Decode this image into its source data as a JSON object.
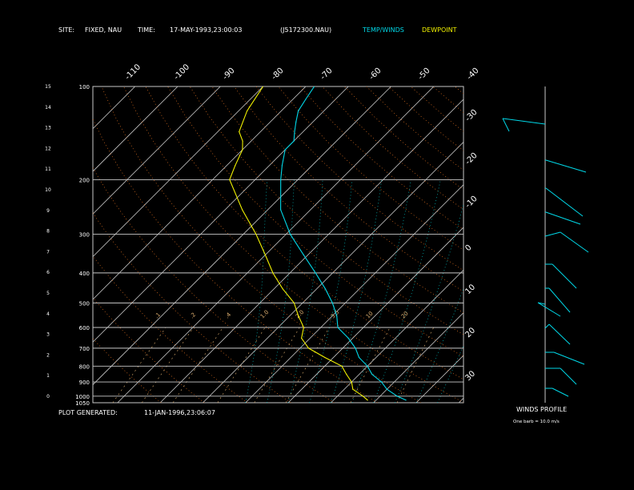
{
  "header": {
    "site_label": "SITE:",
    "site_value": "FIXED, NAU",
    "time_label": "TIME:",
    "time_value": "17-MAY-1993,23:00:03",
    "station_id": "(J5172300.NAU)",
    "temp_legend": "TEMP/WINDS",
    "dew_legend": "DEWPOINT"
  },
  "footer": {
    "generated_label": "PLOT GENERATED:",
    "generated_value": "11-JAN-1996,23:06:07",
    "winds_title": "WINDS PROFILE",
    "barb_note": "One barb = 10.0 m/s"
  },
  "colors": {
    "temp": "#00d8e8",
    "dewpoint": "#f0f000",
    "isobar": "#c8c8c8",
    "isotherm": "#c8c8c8",
    "dry_adiabat": "#e07020",
    "moist_adiabat": "#00c0c0",
    "mixing_ratio": "#e0b070"
  },
  "chart_data": {
    "type": "line",
    "pressure_labels": [
      "100",
      "200",
      "300",
      "400",
      "500",
      "600",
      "700",
      "800",
      "900",
      "1000",
      "1050"
    ],
    "height_labels": [
      "0",
      "1",
      "2",
      "3",
      "4",
      "5",
      "6",
      "7",
      "8",
      "9",
      "10",
      "11",
      "12",
      "13",
      "14",
      "15"
    ],
    "top_temperature_labels": [
      "-110",
      "-100",
      "-90",
      "-80",
      "-70",
      "-60",
      "-50",
      "-40"
    ],
    "right_temperature_labels": [
      "-30",
      "-20",
      "-10",
      "0",
      "10",
      "20",
      "30"
    ],
    "mixing_ratio_labels": [
      ".1",
      ".2",
      ".4",
      "1.0",
      "2.0",
      "3.5",
      "10",
      "20"
    ],
    "series": [
      {
        "name": "TEMP/WINDS",
        "points": [
          {
            "p": 1030,
            "t": 27
          },
          {
            "p": 1000,
            "t": 24
          },
          {
            "p": 950,
            "t": 20
          },
          {
            "p": 900,
            "t": 17
          },
          {
            "p": 850,
            "t": 13
          },
          {
            "p": 800,
            "t": 10
          },
          {
            "p": 750,
            "t": 6
          },
          {
            "p": 700,
            "t": 3
          },
          {
            "p": 650,
            "t": -1
          },
          {
            "p": 600,
            "t": -6
          },
          {
            "p": 550,
            "t": -9
          },
          {
            "p": 500,
            "t": -13
          },
          {
            "p": 450,
            "t": -18
          },
          {
            "p": 400,
            "t": -24
          },
          {
            "p": 350,
            "t": -31
          },
          {
            "p": 300,
            "t": -39
          },
          {
            "p": 250,
            "t": -47
          },
          {
            "p": 200,
            "t": -54
          },
          {
            "p": 180,
            "t": -57
          },
          {
            "p": 160,
            "t": -60
          },
          {
            "p": 150,
            "t": -60
          },
          {
            "p": 140,
            "t": -62
          },
          {
            "p": 130,
            "t": -64
          },
          {
            "p": 120,
            "t": -66
          },
          {
            "p": 110,
            "t": -67
          },
          {
            "p": 100,
            "t": -68
          }
        ]
      },
      {
        "name": "DEWPOINT",
        "points": [
          {
            "p": 1030,
            "t": 18
          },
          {
            "p": 1000,
            "t": 16
          },
          {
            "p": 950,
            "t": 12
          },
          {
            "p": 900,
            "t": 10
          },
          {
            "p": 850,
            "t": 7
          },
          {
            "p": 800,
            "t": 4
          },
          {
            "p": 750,
            "t": -2
          },
          {
            "p": 700,
            "t": -8
          },
          {
            "p": 650,
            "t": -12
          },
          {
            "p": 600,
            "t": -14
          },
          {
            "p": 550,
            "t": -18
          },
          {
            "p": 500,
            "t": -22
          },
          {
            "p": 450,
            "t": -28
          },
          {
            "p": 400,
            "t": -34
          },
          {
            "p": 350,
            "t": -40
          },
          {
            "p": 300,
            "t": -47
          },
          {
            "p": 250,
            "t": -56
          },
          {
            "p": 200,
            "t": -66
          },
          {
            "p": 180,
            "t": -68
          },
          {
            "p": 160,
            "t": -70
          },
          {
            "p": 150,
            "t": -72
          },
          {
            "p": 140,
            "t": -75
          },
          {
            "p": 120,
            "t": -78
          },
          {
            "p": 100,
            "t": -80
          }
        ]
      }
    ]
  }
}
